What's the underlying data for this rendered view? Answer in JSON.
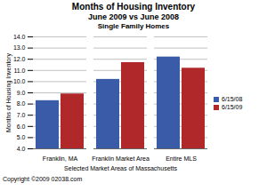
{
  "chart_data": {
    "type": "bar",
    "title": "Months of Housing Inventory",
    "subtitle": "June 2009 vs June 2008",
    "subtitle2": "Single Family Homes",
    "xlabel": "Selected Market Areas of Massachusetts",
    "ylabel": "Months of Housing Inventory",
    "caption": "Copyright ©2009 02038.com",
    "categories": [
      "Franklin, MA",
      "Franklin Market Area",
      "Entire MLS"
    ],
    "series": [
      {
        "name": "6/15/08",
        "color": "#3a5ba8",
        "values": [
          8.3,
          10.2,
          12.2
        ]
      },
      {
        "name": "6/15/09",
        "color": "#b0282a",
        "values": [
          8.9,
          11.7,
          11.2
        ]
      }
    ],
    "ylim": [
      4,
      14
    ],
    "yticks": [
      {
        "value": 4,
        "label": "4.0"
      },
      {
        "value": 5,
        "label": "5.0"
      },
      {
        "value": 6,
        "label": "6.0"
      },
      {
        "value": 7,
        "label": "7.0"
      },
      {
        "value": 8,
        "label": "8.0"
      },
      {
        "value": 9,
        "label": "9.0"
      },
      {
        "value": 10,
        "label": "10.0"
      },
      {
        "value": 11,
        "label": "11.0"
      },
      {
        "value": 12,
        "label": "12.0"
      },
      {
        "value": 13,
        "label": "13.0"
      },
      {
        "value": 14,
        "label": "14.0"
      }
    ],
    "grid": true,
    "legend": "right"
  }
}
